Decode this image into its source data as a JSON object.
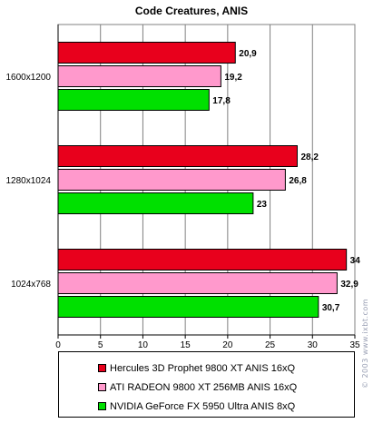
{
  "chart_data": {
    "type": "bar",
    "orientation": "horizontal",
    "title": "Code Creatures, ANIS",
    "categories": [
      "1600x1200",
      "1280x1024",
      "1024x768"
    ],
    "series": [
      {
        "name": "Hercules 3D Prophet 9800 XT ANIS 16xQ",
        "color": "#e8001c",
        "values": [
          20.9,
          28.2,
          34
        ],
        "labels": [
          "20,9",
          "28,2",
          "34"
        ]
      },
      {
        "name": "ATI RADEON 9800 XT 256MB ANIS 16xQ",
        "color": "#ff99cc",
        "values": [
          19.2,
          26.8,
          32.9
        ],
        "labels": [
          "19,2",
          "26,8",
          "32,9"
        ]
      },
      {
        "name": "NVIDIA GeForce FX 5950 Ultra ANIS 8xQ",
        "color": "#00e000",
        "values": [
          17.8,
          23,
          30.7
        ],
        "labels": [
          "17,8",
          "23",
          "30,7"
        ]
      }
    ],
    "xlim": [
      0,
      35
    ],
    "xticks": [
      0,
      5,
      10,
      15,
      20,
      25,
      30,
      35
    ],
    "grid": true,
    "legend_position": "bottom"
  },
  "watermark": "© 2003 www.ixbt.com"
}
